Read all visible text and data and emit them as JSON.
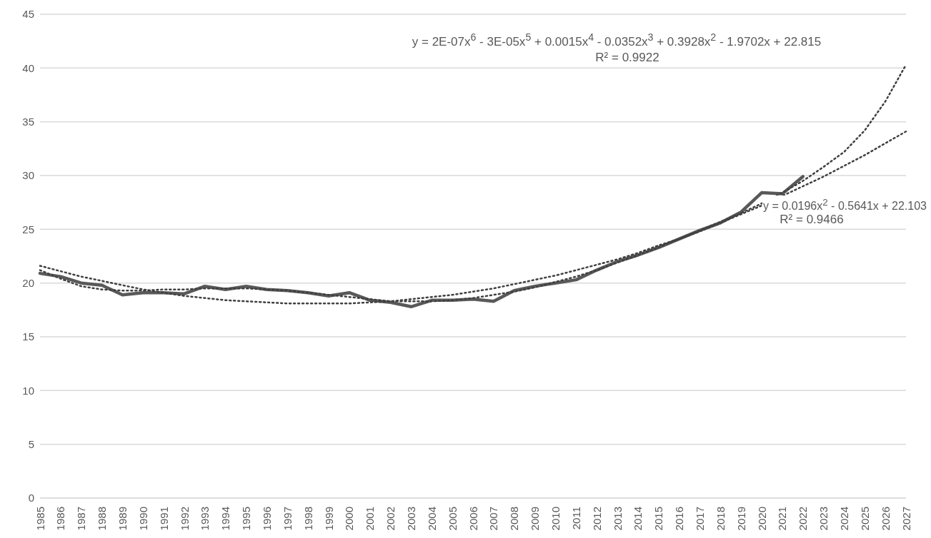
{
  "chart_data": {
    "type": "line",
    "categories": [
      "1985",
      "1986",
      "1987",
      "1988",
      "1989",
      "1990",
      "1991",
      "1992",
      "1993",
      "1994",
      "1995",
      "1996",
      "1997",
      "1998",
      "1999",
      "2000",
      "2001",
      "2002",
      "2003",
      "2004",
      "2005",
      "2006",
      "2007",
      "2008",
      "2009",
      "2010",
      "2011",
      "2012",
      "2013",
      "2014",
      "2015",
      "2016",
      "2017",
      "2018",
      "2019",
      "2020",
      "2021",
      "2022",
      "2023",
      "2024",
      "2025",
      "2026",
      "2027"
    ],
    "series": [
      {
        "color": "#595959",
        "line_style": "solid",
        "values": [
          20.9,
          20.6,
          20.0,
          19.8,
          18.9,
          19.1,
          19.1,
          19.0,
          19.7,
          19.4,
          19.7,
          19.4,
          19.3,
          19.1,
          18.8,
          19.1,
          18.4,
          18.2,
          17.8,
          18.4,
          18.4,
          18.5,
          18.3,
          19.3,
          19.7,
          20.0,
          20.3,
          21.2,
          22.0,
          22.6,
          23.3,
          24.1,
          24.9,
          25.6,
          26.6,
          28.4,
          28.3,
          29.9,
          null,
          null,
          null,
          null,
          null
        ]
      },
      {
        "type": "line",
        "color": "#404040",
        "line_style": "dotted",
        "values": [
          21.2,
          20.4,
          19.7,
          19.4,
          19.3,
          19.3,
          19.4,
          19.4,
          19.5,
          19.5,
          19.5,
          19.4,
          19.3,
          19.1,
          18.9,
          18.7,
          18.5,
          18.3,
          18.3,
          18.3,
          18.4,
          18.6,
          18.9,
          19.2,
          19.6,
          20.1,
          20.6,
          21.2,
          21.9,
          22.6,
          23.3,
          24.1,
          24.9,
          25.7,
          26.5,
          27.4,
          28.4,
          29.5,
          30.8,
          32.2,
          34.2,
          36.9,
          40.3
        ]
      },
      {
        "type": "line",
        "color": "#404040",
        "line_style": "dotted",
        "values": [
          21.6,
          21.1,
          20.6,
          20.2,
          19.8,
          19.4,
          19.1,
          18.8,
          18.6,
          18.4,
          18.3,
          18.2,
          18.1,
          18.1,
          18.1,
          18.1,
          18.2,
          18.3,
          18.5,
          18.7,
          18.9,
          19.2,
          19.5,
          19.9,
          20.3,
          20.7,
          21.2,
          21.7,
          22.2,
          22.8,
          23.5,
          24.1,
          24.8,
          25.6,
          26.4,
          27.2,
          28.1,
          29.0,
          29.9,
          30.9,
          31.9,
          33.0,
          34.1
        ]
      }
    ],
    "ylim": [
      0,
      45
    ],
    "yticks": [
      0,
      5,
      10,
      15,
      20,
      25,
      30,
      35,
      40,
      45
    ],
    "grid": "y",
    "legend": false,
    "marker": "none",
    "annotations": [
      "y = 2E-07x$^{6}$ - 3E-05x$^{5}$ + 0.0015x$^{4}$ - 0.0352x$^{3}$ + 0.3928x$^{2}$ - 1.9702x + 22.815",
      "R² = 0.9922",
      "y = 0.0196x$^{2}$ - 0.5641x + 22.103",
      "R² = 0.9466"
    ]
  }
}
